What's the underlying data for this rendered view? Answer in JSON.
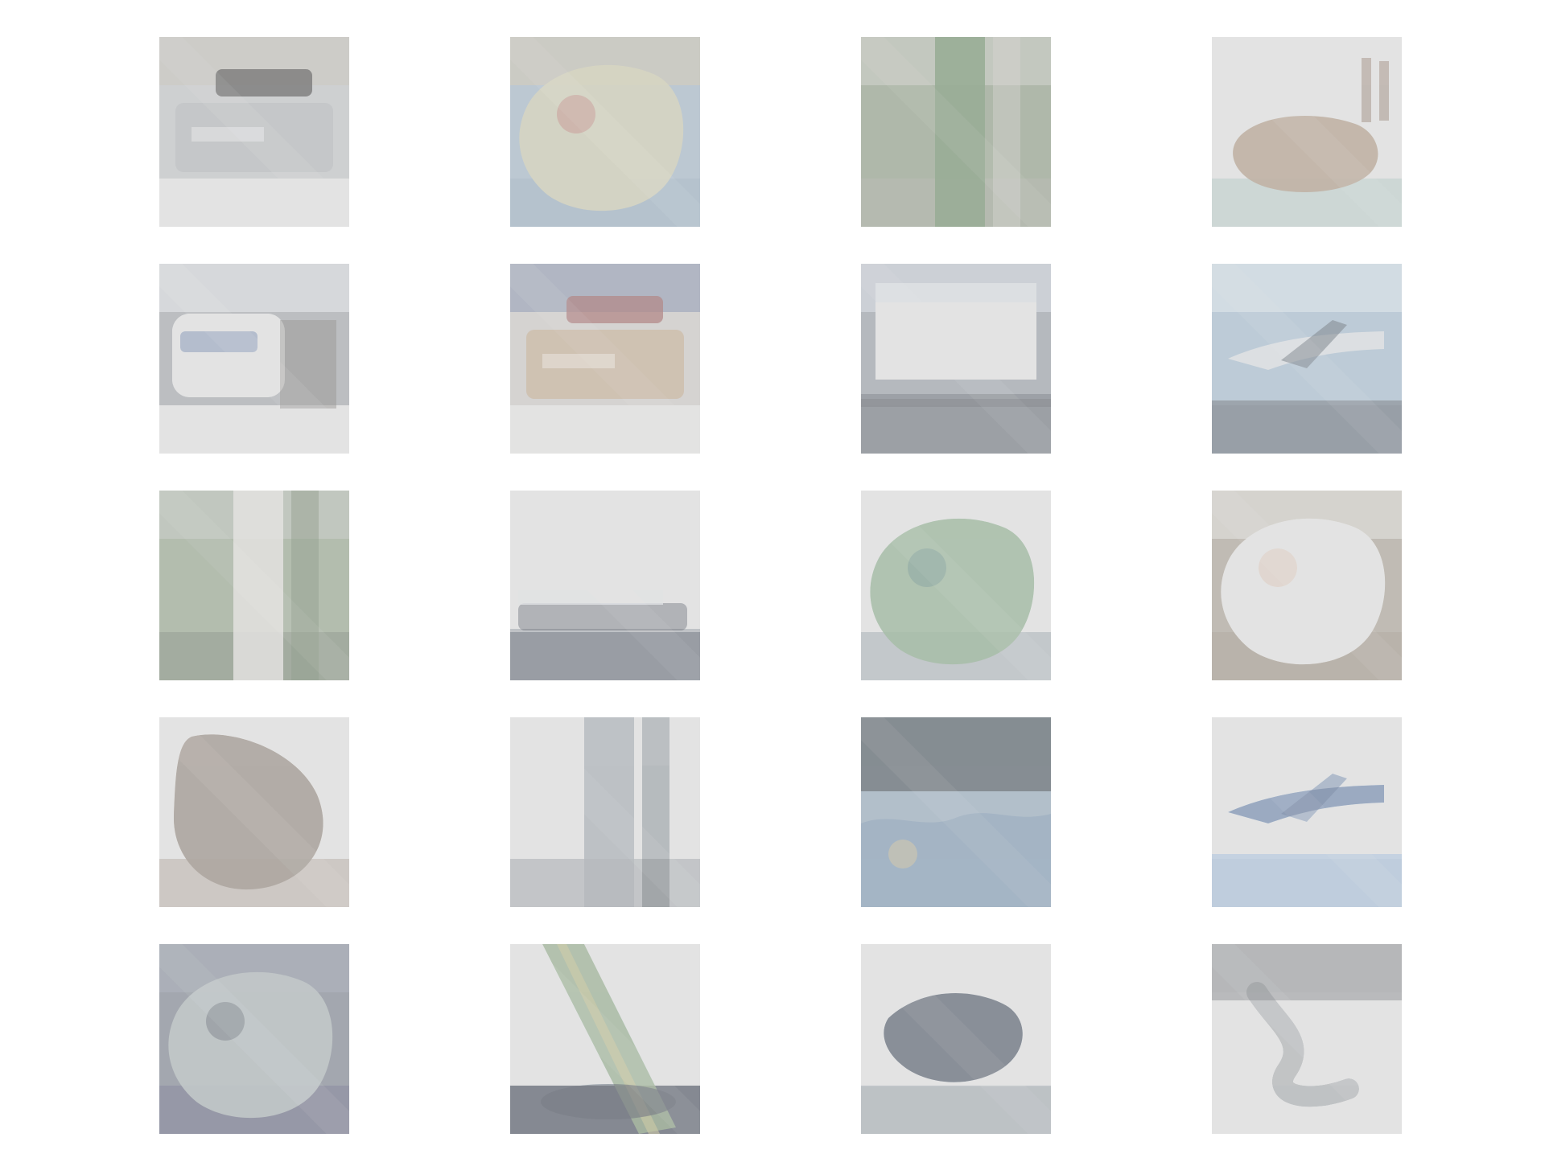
{
  "tiles": [
    {
      "name": "image-tile-truck-gray",
      "bg": "#b7bcc0",
      "top": "#b8b4a8",
      "mid": "#a6adb3",
      "bottom": "#eef2f8",
      "accent": "#2c2c2c",
      "shape": "truck"
    },
    {
      "name": "image-tile-coastline-aerial",
      "bg": "#8fb2cf",
      "top": "#b9b49a",
      "mid": "#c9c48f",
      "bottom": "#7fa6c6",
      "accent": "#e34a4a",
      "shape": "blob"
    },
    {
      "name": "image-tile-deer-forest",
      "bg": "#7e9a70",
      "top": "#a8b29a",
      "mid": "#4f8a46",
      "bottom": "#8d9b80",
      "accent": "#c8c2b8",
      "shape": "vertical"
    },
    {
      "name": "image-tile-deer-snow",
      "bg": "#d7dfdd",
      "top": "#e0e6e3",
      "mid": "#b48a64",
      "bottom": "#a7c7c1",
      "accent": "#8c5a3c",
      "shape": "animal"
    },
    {
      "name": "image-tile-bus-white",
      "bg": "#9aa0a8",
      "top": "#c8ced6",
      "mid": "#f2f4f8",
      "bottom": "#e7eaef",
      "accent": "#2e5aa8",
      "shape": "bus"
    },
    {
      "name": "image-tile-truck-colorful",
      "bg": "#c7c0b9",
      "top": "#7c8fb8",
      "mid": "#c8a072",
      "bottom": "#e2ddd7",
      "accent": "#b74040",
      "shape": "truck"
    },
    {
      "name": "image-tile-building-road",
      "bg": "#8d98a6",
      "top": "#b6bfd0",
      "mid": "#f0f2f5",
      "bottom": "#64707e",
      "accent": "#3e4652",
      "shape": "building"
    },
    {
      "name": "image-tile-airplane-water",
      "bg": "#8fb6d8",
      "top": "#b7d3ea",
      "mid": "#cfd6dc",
      "bottom": "#5b6f84",
      "accent": "#374a5e",
      "shape": "plane"
    },
    {
      "name": "image-tile-deer-grass",
      "bg": "#86a178",
      "top": "#a1b39a",
      "mid": "#dcd7d1",
      "bottom": "#6a8460",
      "accent": "#4e7043",
      "shape": "vertical"
    },
    {
      "name": "image-tile-ship-sea",
      "bg": "#f3f4f7",
      "top": "#ffffff",
      "mid": "#cfd5df",
      "bottom": "#5a6578",
      "accent": "#2f3a4c",
      "shape": "ship"
    },
    {
      "name": "image-tile-frog-white",
      "bg": "#e7ecef",
      "top": "#dfe6ea",
      "mid": "#6aa66b",
      "bottom": "#9aa8b2",
      "accent": "#2a7b7a",
      "shape": "blob"
    },
    {
      "name": "image-tile-cat-white",
      "bg": "#a89a86",
      "top": "#c9c3b8",
      "mid": "#f0ede8",
      "bottom": "#9c8b74",
      "accent": "#d59a78",
      "shape": "blob"
    },
    {
      "name": "image-tile-animal-fur",
      "bg": "#efe7de",
      "top": "#f6f1ec",
      "mid": "#8c7a68",
      "bottom": "#b7a79a",
      "accent": "#5e5046",
      "shape": "fur"
    },
    {
      "name": "image-tile-truck-tires",
      "bg": "#dfe9ef",
      "top": "#eef6fb",
      "mid": "#8d98a3",
      "bottom": "#9da4ab",
      "accent": "#2d3b4a",
      "shape": "vertical"
    },
    {
      "name": "image-tile-ship-ocean",
      "bg": "#4d6373",
      "top": "#3e5262",
      "mid": "#7fa6c8",
      "bottom": "#5f8fbf",
      "accent": "#d2b35b",
      "shape": "water"
    },
    {
      "name": "image-tile-airplane-blue",
      "bg": "#dceefa",
      "top": "#f5fbff",
      "mid": "#4f7bc0",
      "bottom": "#8fb8e6",
      "accent": "#2f5aa3",
      "shape": "plane"
    },
    {
      "name": "image-tile-frog-dark",
      "bg": "#6f7c91",
      "top": "#7b8aa2",
      "mid": "#9fb0b3",
      "bottom": "#5c5f8c",
      "accent": "#2e3b57",
      "shape": "blob"
    },
    {
      "name": "image-tile-airplane-sky",
      "bg": "#d5eef7",
      "top": "#eaf8ff",
      "mid": "#6f9c5b",
      "bottom": "#2f3a53",
      "accent": "#c8b84e",
      "shape": "diagonal"
    },
    {
      "name": "image-tile-whale-sky",
      "bg": "#dfe8f2",
      "top": "#ffffff",
      "mid": "#33455f",
      "bottom": "#97a3ad",
      "accent": "#5d6f84",
      "shape": "whale"
    },
    {
      "name": "image-tile-bird-white",
      "bg": "#ffffff",
      "top": "#8f949a",
      "mid": "#eef1f4",
      "bottom": "#f7f8fa",
      "accent": "#56616c",
      "shape": "bird"
    }
  ]
}
